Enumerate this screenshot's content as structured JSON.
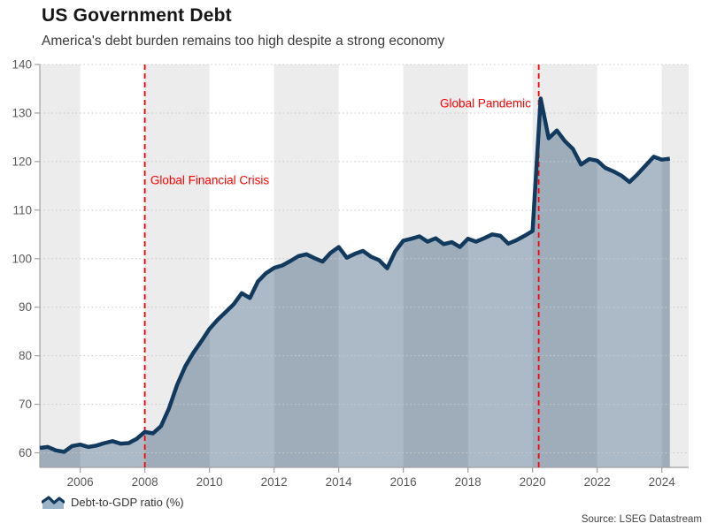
{
  "header": {
    "title": "US Government Debt",
    "subtitle": "America's debt burden remains too high despite a strong economy"
  },
  "legend": {
    "label": "Debt-to-GDP ratio (%)"
  },
  "source": "Source: LSEG Datastream",
  "chart_data": {
    "type": "area",
    "title": "US Government Debt",
    "series_name": "Debt-to-GDP ratio (%)",
    "xlabel": "",
    "ylabel": "",
    "xlim": [
      2004.75,
      2024.83
    ],
    "ylim": [
      57,
      140
    ],
    "yticks": [
      60,
      70,
      80,
      90,
      100,
      110,
      120,
      130,
      140
    ],
    "xticks": [
      2006,
      2008,
      2010,
      2012,
      2014,
      2016,
      2018,
      2020,
      2022,
      2024
    ],
    "grid": "horizontal-dotted",
    "legend_position": "bottom-left",
    "shaded_bands": [
      [
        2004,
        2006
      ],
      [
        2008,
        2010
      ],
      [
        2012,
        2014
      ],
      [
        2016,
        2018
      ],
      [
        2020,
        2022
      ],
      [
        2024,
        2026
      ]
    ],
    "event_lines": [
      {
        "x": 2008.0,
        "label": "Global Financial Crisis",
        "label_x": 2008.17,
        "label_y": 116.2,
        "align": "start"
      },
      {
        "x": 2020.19,
        "label": "Global Pandemic",
        "label_x": 2019.95,
        "label_y": 132.0,
        "align": "end"
      }
    ],
    "x": [
      2004.75,
      2005.0,
      2005.25,
      2005.5,
      2005.75,
      2006.0,
      2006.25,
      2006.5,
      2006.75,
      2007.0,
      2007.25,
      2007.5,
      2007.75,
      2008.0,
      2008.25,
      2008.5,
      2008.75,
      2009.0,
      2009.25,
      2009.5,
      2009.75,
      2010.0,
      2010.25,
      2010.5,
      2010.75,
      2011.0,
      2011.25,
      2011.5,
      2011.75,
      2012.0,
      2012.25,
      2012.5,
      2012.75,
      2013.0,
      2013.25,
      2013.5,
      2013.75,
      2014.0,
      2014.25,
      2014.5,
      2014.75,
      2015.0,
      2015.25,
      2015.5,
      2015.75,
      2016.0,
      2016.25,
      2016.5,
      2016.75,
      2017.0,
      2017.25,
      2017.5,
      2017.75,
      2018.0,
      2018.25,
      2018.5,
      2018.75,
      2019.0,
      2019.25,
      2019.5,
      2019.75,
      2020.0,
      2020.25,
      2020.5,
      2020.75,
      2021.0,
      2021.25,
      2021.5,
      2021.75,
      2022.0,
      2022.25,
      2022.5,
      2022.75,
      2023.0,
      2023.25,
      2023.5,
      2023.75,
      2024.0,
      2024.25
    ],
    "values": [
      61.0,
      61.2,
      60.5,
      60.2,
      61.4,
      61.7,
      61.2,
      61.5,
      62.0,
      62.4,
      61.9,
      62.0,
      62.9,
      64.3,
      64.0,
      65.5,
      69.2,
      74.0,
      77.8,
      80.6,
      83.0,
      85.5,
      87.4,
      89.0,
      90.6,
      92.9,
      91.9,
      95.3,
      97.0,
      98.1,
      98.6,
      99.5,
      100.5,
      100.9,
      100.1,
      99.4,
      101.2,
      102.4,
      100.2,
      101.0,
      101.6,
      100.4,
      99.7,
      98.0,
      101.5,
      103.7,
      104.1,
      104.6,
      103.5,
      104.2,
      103.0,
      103.4,
      102.4,
      104.1,
      103.5,
      104.2,
      105.0,
      104.7,
      103.1,
      103.8,
      104.7,
      105.7,
      133.0,
      124.8,
      126.4,
      124.2,
      122.6,
      119.4,
      120.5,
      120.2,
      118.7,
      118.0,
      117.1,
      115.8,
      117.4,
      119.2,
      121.0,
      120.4,
      120.6
    ],
    "colors": {
      "line": "#123a5e",
      "fill": "rgba(18,58,94,0.35)",
      "event_line": "#ff0000",
      "annotation_text": "#ff0000",
      "band": "#ececec",
      "grid": "#c9c9c9",
      "axis": "#a0a0a0",
      "tick_label": "#595959"
    }
  }
}
